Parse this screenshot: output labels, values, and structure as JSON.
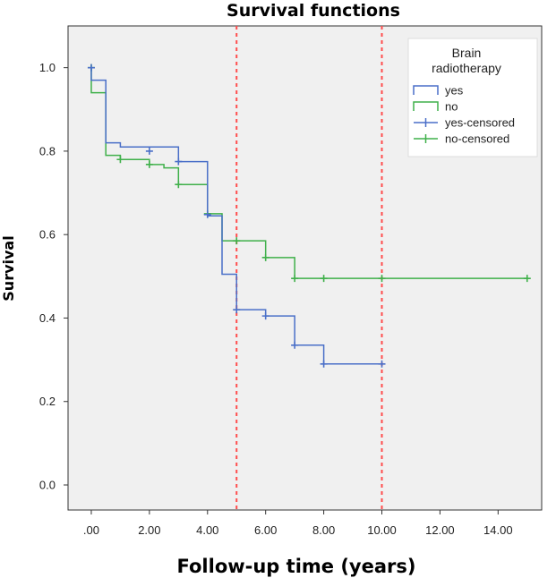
{
  "chart_data": {
    "type": "line",
    "subtype": "kaplan-meier step",
    "title": "Survival functions",
    "xlabel": "Follow-up time (years)",
    "ylabel": "Survival",
    "xlim": [
      -0.8,
      15.5
    ],
    "ylim": [
      -0.06,
      1.1
    ],
    "x_ticks": [
      0,
      2,
      4,
      6,
      8,
      10,
      12,
      14
    ],
    "x_tick_labels": [
      ".00",
      "2.00",
      "4.00",
      "6.00",
      "8.00",
      "10.00",
      "12.00",
      "14.00"
    ],
    "y_ticks": [
      0.0,
      0.2,
      0.4,
      0.6,
      0.8,
      1.0
    ],
    "y_tick_labels": [
      "0.0",
      "0.2",
      "0.4",
      "0.6",
      "0.8",
      "1.0"
    ],
    "reference_lines_x": [
      5,
      10
    ],
    "reference_line_color": "#ff4d4d",
    "plot_background": "#f0f0f0",
    "legend": {
      "title_line1": "Brain",
      "title_line2": "radiotherapy",
      "entries": [
        "yes",
        "no",
        "yes-censored",
        "no-censored"
      ],
      "position": "top-right"
    },
    "series": [
      {
        "name": "yes",
        "color": "#4a6fc8",
        "steps": [
          [
            0,
            0.97
          ],
          [
            0.5,
            0.82
          ],
          [
            1.0,
            0.81
          ],
          [
            3.0,
            0.775
          ],
          [
            4.0,
            0.645
          ],
          [
            4.5,
            0.505
          ],
          [
            5.0,
            0.42
          ],
          [
            6.0,
            0.405
          ],
          [
            7.0,
            0.335
          ],
          [
            8.0,
            0.29
          ],
          [
            10.0,
            0.29
          ]
        ],
        "start": [
          0,
          1.0
        ],
        "censored": [
          [
            0,
            1.0
          ],
          [
            2.0,
            0.8
          ],
          [
            3.0,
            0.775
          ],
          [
            4.0,
            0.648
          ],
          [
            5.0,
            0.42
          ],
          [
            6.0,
            0.405
          ],
          [
            7.0,
            0.335
          ],
          [
            8.0,
            0.29
          ],
          [
            10.0,
            0.29
          ]
        ]
      },
      {
        "name": "no",
        "color": "#3fb04a",
        "steps": [
          [
            0,
            0.94
          ],
          [
            0.5,
            0.79
          ],
          [
            1.0,
            0.78
          ],
          [
            2.0,
            0.768
          ],
          [
            2.5,
            0.76
          ],
          [
            3.0,
            0.72
          ],
          [
            4.0,
            0.65
          ],
          [
            4.5,
            0.585
          ],
          [
            6.0,
            0.545
          ],
          [
            7.0,
            0.495
          ],
          [
            15.0,
            0.495
          ]
        ],
        "start": [
          0,
          1.0
        ],
        "censored": [
          [
            0,
            1.0
          ],
          [
            1.0,
            0.78
          ],
          [
            2.0,
            0.768
          ],
          [
            3.0,
            0.72
          ],
          [
            4.0,
            0.65
          ],
          [
            5.0,
            0.585
          ],
          [
            6.0,
            0.545
          ],
          [
            7.0,
            0.495
          ],
          [
            8.0,
            0.495
          ],
          [
            10.0,
            0.495
          ],
          [
            15.0,
            0.495
          ]
        ]
      }
    ]
  }
}
